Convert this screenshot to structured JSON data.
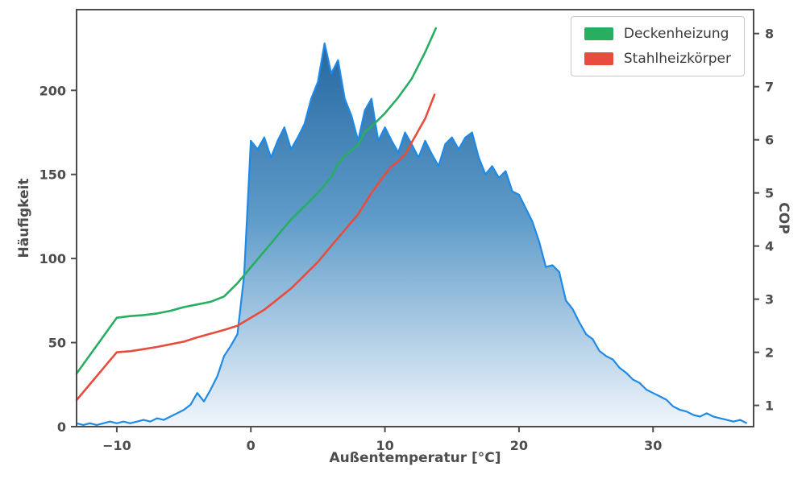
{
  "chart_data": {
    "type": "area",
    "title": "",
    "xlabel": "Außentemperatur [°C]",
    "ylabel_left": "Häufigkeit",
    "ylabel_right": "COP",
    "xlim": [
      -13,
      37.5
    ],
    "ylim_left": [
      0,
      248
    ],
    "ylim_right": [
      0.6,
      8.45
    ],
    "xticks": [
      -10,
      0,
      10,
      20,
      30
    ],
    "yticks_left": [
      0,
      50,
      100,
      150,
      200
    ],
    "yticks_right": [
      1,
      2,
      3,
      4,
      5,
      6,
      7,
      8
    ],
    "grid": false,
    "legend_position": "top-right",
    "colors": {
      "hist_line": "#1f8ae6",
      "hist_fill_top": "#1b5e98",
      "hist_fill_mid": "#5e9bc9",
      "hist_fill_bottom": "#f0f6fc",
      "axis": "#4d4d4d",
      "text": "#4d4d4d",
      "legend_border": "#c9c9c9"
    },
    "histogram": {
      "name": "Häufigkeit der Außentemperatur",
      "x_start": -13,
      "x_step": 0.5,
      "values": [
        2,
        1,
        2,
        1,
        2,
        3,
        2,
        3,
        2,
        3,
        4,
        3,
        5,
        4,
        6,
        8,
        10,
        13,
        20,
        15,
        22,
        30,
        42,
        48,
        55,
        90,
        170,
        165,
        172,
        160,
        170,
        178,
        165,
        172,
        180,
        195,
        205,
        228,
        210,
        218,
        195,
        185,
        170,
        188,
        195,
        170,
        178,
        170,
        163,
        175,
        168,
        160,
        170,
        162,
        155,
        168,
        172,
        165,
        172,
        175,
        160,
        150,
        155,
        148,
        152,
        140,
        138,
        130,
        122,
        110,
        95,
        96,
        92,
        75,
        70,
        62,
        55,
        52,
        45,
        42,
        40,
        35,
        32,
        28,
        26,
        22,
        20,
        18,
        16,
        12,
        10,
        9,
        7,
        6,
        8,
        6,
        5,
        4,
        3,
        4,
        2
      ]
    },
    "series": [
      {
        "name": "Deckenheizung",
        "axis": "right",
        "color": "#27ae60",
        "x": [
          -13,
          -10,
          -9,
          -8,
          -7,
          -6,
          -5,
          -4,
          -3,
          -2,
          -1,
          0,
          1,
          2,
          3,
          4,
          5,
          6,
          6.5,
          7,
          7.5,
          8,
          8.5,
          9,
          10,
          11,
          12,
          13,
          13.8
        ],
        "values": [
          1.6,
          2.65,
          2.68,
          2.7,
          2.73,
          2.78,
          2.85,
          2.9,
          2.95,
          3.05,
          3.3,
          3.6,
          3.9,
          4.2,
          4.5,
          4.75,
          5.0,
          5.3,
          5.55,
          5.7,
          5.8,
          5.9,
          6.15,
          6.25,
          6.5,
          6.8,
          7.15,
          7.65,
          8.1
        ]
      },
      {
        "name": "Stahlheizkörper",
        "axis": "right",
        "color": "#e74c3c",
        "x": [
          -13,
          -10,
          -9,
          -8,
          -7,
          -6,
          -5,
          -4,
          -3,
          -2,
          -1,
          0,
          1,
          2,
          3,
          4,
          5,
          6,
          7,
          8,
          9,
          10,
          10.5,
          11,
          11.5,
          12,
          13,
          13.7
        ],
        "values": [
          1.1,
          2.0,
          2.02,
          2.06,
          2.1,
          2.15,
          2.2,
          2.28,
          2.35,
          2.42,
          2.5,
          2.65,
          2.8,
          3.0,
          3.2,
          3.45,
          3.7,
          4.0,
          4.3,
          4.6,
          5.0,
          5.35,
          5.5,
          5.6,
          5.72,
          5.95,
          6.4,
          6.85
        ]
      }
    ]
  }
}
